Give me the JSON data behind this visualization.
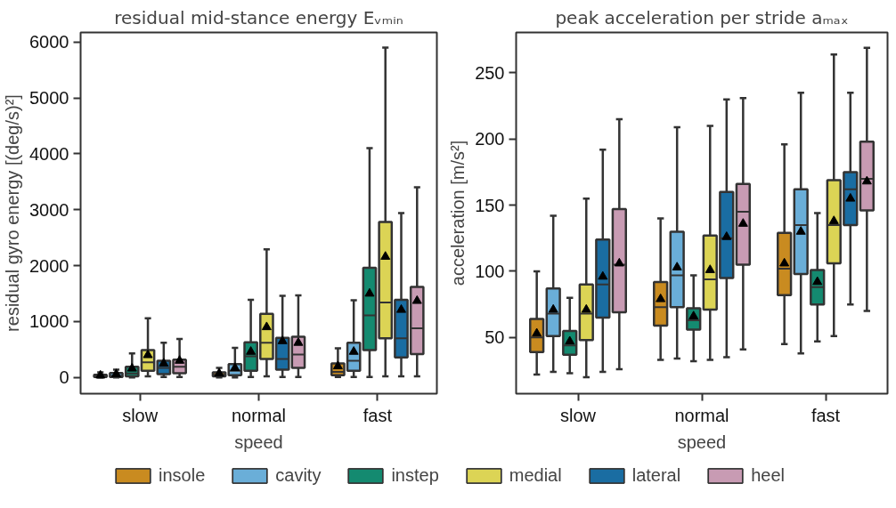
{
  "chart_data": [
    {
      "type": "box",
      "title": "residual mid-stance energy Eᵥₘᵢₙ",
      "xlabel": "speed",
      "ylabel": "residual gyro energy [(deg/s)²]",
      "categories": [
        "slow",
        "normal",
        "fast"
      ],
      "ylim": [
        -290,
        6170
      ],
      "yticks": [
        0,
        1000,
        2000,
        3000,
        4000,
        5000,
        6000
      ],
      "grid": false,
      "legend": "bottom",
      "marker": "triangle",
      "series": [
        {
          "name": "insole",
          "color": "#c98b20",
          "boxes": [
            {
              "low": 0,
              "q1": 10,
              "median": 25,
              "q3": 50,
              "high": 90,
              "mean": 35
            },
            {
              "low": 0,
              "q1": 20,
              "median": 50,
              "q3": 90,
              "high": 170,
              "mean": 70
            },
            {
              "low": 10,
              "q1": 40,
              "median": 100,
              "q3": 250,
              "high": 520,
              "mean": 200
            }
          ]
        },
        {
          "name": "cavity",
          "color": "#6aaed8",
          "boxes": [
            {
              "low": 0,
              "q1": 10,
              "median": 30,
              "q3": 80,
              "high": 140,
              "mean": 60
            },
            {
              "low": 0,
              "q1": 40,
              "median": 120,
              "q3": 240,
              "high": 530,
              "mean": 170
            },
            {
              "low": 10,
              "q1": 120,
              "median": 300,
              "q3": 620,
              "high": 1380,
              "mean": 460
            }
          ]
        },
        {
          "name": "instep",
          "color": "#148a70",
          "boxes": [
            {
              "low": 0,
              "q1": 20,
              "median": 70,
              "q3": 190,
              "high": 430,
              "mean": 160
            },
            {
              "low": 10,
              "q1": 120,
              "median": 380,
              "q3": 630,
              "high": 1390,
              "mean": 460
            },
            {
              "low": 10,
              "q1": 490,
              "median": 1110,
              "q3": 1960,
              "high": 4100,
              "mean": 1500
            }
          ]
        },
        {
          "name": "medial",
          "color": "#dcd455",
          "boxes": [
            {
              "low": 20,
              "q1": 120,
              "median": 270,
              "q3": 490,
              "high": 1060,
              "mean": 400
            },
            {
              "low": 20,
              "q1": 330,
              "median": 620,
              "q3": 1140,
              "high": 2290,
              "mean": 900
            },
            {
              "low": 20,
              "q1": 700,
              "median": 1340,
              "q3": 2780,
              "high": 5900,
              "mean": 2160
            }
          ]
        },
        {
          "name": "lateral",
          "color": "#1a6da2",
          "boxes": [
            {
              "low": 10,
              "q1": 60,
              "median": 170,
              "q3": 300,
              "high": 620,
              "mean": 250
            },
            {
              "low": 10,
              "q1": 140,
              "median": 330,
              "q3": 710,
              "high": 1460,
              "mean": 650
            },
            {
              "low": 20,
              "q1": 360,
              "median": 700,
              "q3": 1390,
              "high": 2940,
              "mean": 1210
            }
          ]
        },
        {
          "name": "heel",
          "color": "#c89bb3",
          "boxes": [
            {
              "low": 10,
              "q1": 75,
              "median": 190,
              "q3": 320,
              "high": 690,
              "mean": 300
            },
            {
              "low": 10,
              "q1": 170,
              "median": 410,
              "q3": 730,
              "high": 1470,
              "mean": 620
            },
            {
              "low": 20,
              "q1": 420,
              "median": 880,
              "q3": 1620,
              "high": 3400,
              "mean": 1370
            }
          ]
        }
      ]
    },
    {
      "type": "box",
      "title": "peak acceleration per stride aₘₐₓ",
      "xlabel": "speed",
      "ylabel": "acceleration [m/s²]",
      "categories": [
        "slow",
        "normal",
        "fast"
      ],
      "ylim": [
        7.5,
        280.6
      ],
      "yticks": [
        50,
        100,
        150,
        200,
        250
      ],
      "grid": false,
      "legend": "bottom",
      "marker": "triangle",
      "series": [
        {
          "name": "insole",
          "color": "#c98b20",
          "boxes": [
            {
              "low": 22,
              "q1": 39,
              "median": 50,
              "q3": 64,
              "high": 100,
              "mean": 53
            },
            {
              "low": 33,
              "q1": 59,
              "median": 73,
              "q3": 92,
              "high": 140,
              "mean": 79
            },
            {
              "low": 45,
              "q1": 82,
              "median": 102,
              "q3": 129,
              "high": 196,
              "mean": 106
            }
          ]
        },
        {
          "name": "cavity",
          "color": "#6aaed8",
          "boxes": [
            {
              "low": 24,
              "q1": 51,
              "median": 68,
              "q3": 87,
              "high": 142,
              "mean": 71
            },
            {
              "low": 34,
              "q1": 73,
              "median": 97,
              "q3": 130,
              "high": 209,
              "mean": 103
            },
            {
              "low": 38,
              "q1": 98,
              "median": 135,
              "q3": 162,
              "high": 235,
              "mean": 130
            }
          ]
        },
        {
          "name": "instep",
          "color": "#148a70",
          "boxes": [
            {
              "low": 23,
              "q1": 37,
              "median": 44,
              "q3": 55,
              "high": 80,
              "mean": 47
            },
            {
              "low": 32,
              "q1": 56,
              "median": 63,
              "q3": 72,
              "high": 97,
              "mean": 66
            },
            {
              "low": 47,
              "q1": 75,
              "median": 88,
              "q3": 101,
              "high": 144,
              "mean": 92
            }
          ]
        },
        {
          "name": "medial",
          "color": "#dcd455",
          "boxes": [
            {
              "low": 20,
              "q1": 48,
              "median": 68,
              "q3": 90,
              "high": 155,
              "mean": 71
            },
            {
              "low": 33,
              "q1": 71,
              "median": 94,
              "q3": 127,
              "high": 210,
              "mean": 101
            },
            {
              "low": 51,
              "q1": 106,
              "median": 135,
              "q3": 169,
              "high": 264,
              "mean": 138
            }
          ]
        },
        {
          "name": "lateral",
          "color": "#1a6da2",
          "boxes": [
            {
              "low": 24,
              "q1": 65,
              "median": 90,
              "q3": 124,
              "high": 192,
              "mean": 96
            },
            {
              "low": 35,
              "q1": 95,
              "median": 125,
              "q3": 160,
              "high": 230,
              "mean": 126
            },
            {
              "low": 75,
              "q1": 135,
              "median": 162,
              "q3": 175,
              "high": 235,
              "mean": 155
            }
          ]
        },
        {
          "name": "heel",
          "color": "#c89bb3",
          "boxes": [
            {
              "low": 26,
              "q1": 69,
              "median": 105,
              "q3": 147,
              "high": 215,
              "mean": 106
            },
            {
              "low": 41,
              "q1": 105,
              "median": 145,
              "q3": 166,
              "high": 231,
              "mean": 136
            },
            {
              "low": 70,
              "q1": 146,
              "median": 170,
              "q3": 198,
              "high": 269,
              "mean": 168
            }
          ]
        }
      ]
    }
  ]
}
